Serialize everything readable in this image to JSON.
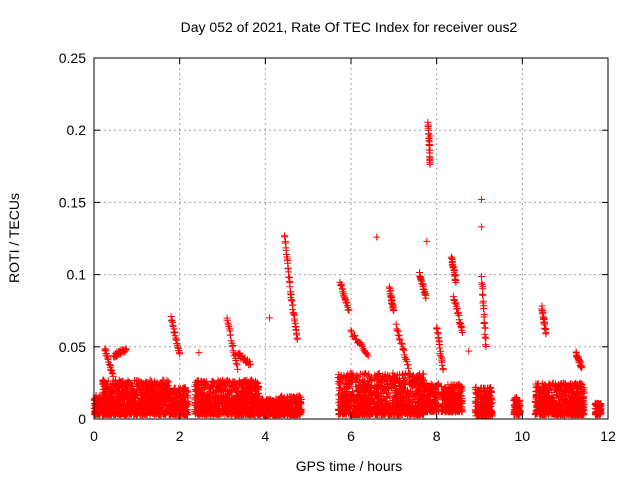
{
  "chart_data": {
    "type": "scatter",
    "title": "Day 052 of 2021, Rate Of TEC Index for receiver ous2",
    "xlabel": "GPS time / hours",
    "ylabel": "ROTI / TECUs",
    "xlim": [
      0,
      12
    ],
    "ylim": [
      0,
      0.25
    ],
    "xticks": [
      0,
      2,
      4,
      6,
      8,
      10,
      12
    ],
    "yticks": [
      0,
      0.05,
      0.1,
      0.15,
      0.2,
      0.25
    ],
    "xtick_labels": [
      "0",
      "2",
      "4",
      "6",
      "8",
      "10",
      "12"
    ],
    "ytick_labels": [
      "0",
      "0.05",
      "0.1",
      "0.15",
      "0.2",
      "0.25"
    ],
    "grid": true,
    "marker": "+",
    "color": "#ff0000",
    "dense_segments": [
      {
        "x": [
          0.0,
          0.15
        ],
        "y": [
          0.003,
          0.018
        ]
      },
      {
        "x": [
          0.2,
          1.75
        ],
        "y": [
          0.003,
          0.027
        ]
      },
      {
        "x": [
          1.75,
          2.2
        ],
        "y": [
          0.003,
          0.022
        ]
      },
      {
        "x": [
          2.35,
          3.85
        ],
        "y": [
          0.003,
          0.027
        ]
      },
      {
        "x": [
          3.85,
          4.35
        ],
        "y": [
          0.003,
          0.014
        ]
      },
      {
        "x": [
          4.35,
          4.85
        ],
        "y": [
          0.003,
          0.016
        ]
      },
      {
        "x": [
          5.7,
          7.7
        ],
        "y": [
          0.003,
          0.032
        ]
      },
      {
        "x": [
          7.7,
          8.05
        ],
        "y": [
          0.005,
          0.025
        ]
      },
      {
        "x": [
          8.1,
          8.6
        ],
        "y": [
          0.005,
          0.024
        ]
      },
      {
        "x": [
          8.9,
          9.3
        ],
        "y": [
          0.002,
          0.022
        ]
      },
      {
        "x": [
          9.8,
          9.95
        ],
        "y": [
          0.003,
          0.015
        ]
      },
      {
        "x": [
          10.3,
          11.45
        ],
        "y": [
          0.003,
          0.025
        ]
      },
      {
        "x": [
          11.7,
          11.85
        ],
        "y": [
          0.003,
          0.011
        ]
      }
    ],
    "arcs": [
      {
        "x": [
          0.25,
          0.45
        ],
        "y": [
          0.049,
          0.03
        ]
      },
      {
        "x": [
          0.45,
          0.75
        ],
        "y": [
          0.044,
          0.048
        ]
      },
      {
        "x": [
          1.8,
          2.0
        ],
        "y": [
          0.07,
          0.045
        ]
      },
      {
        "x": [
          3.1,
          3.35
        ],
        "y": [
          0.07,
          0.035
        ]
      },
      {
        "x": [
          3.35,
          3.65
        ],
        "y": [
          0.045,
          0.038
        ]
      },
      {
        "x": [
          4.45,
          4.6
        ],
        "y": [
          0.127,
          0.085
        ]
      },
      {
        "x": [
          4.6,
          4.75
        ],
        "y": [
          0.085,
          0.055
        ]
      },
      {
        "x": [
          5.75,
          5.95
        ],
        "y": [
          0.095,
          0.075
        ]
      },
      {
        "x": [
          6.0,
          6.4
        ],
        "y": [
          0.06,
          0.045
        ]
      },
      {
        "x": [
          6.9,
          7.0
        ],
        "y": [
          0.09,
          0.075
        ]
      },
      {
        "x": [
          7.05,
          7.35
        ],
        "y": [
          0.065,
          0.035
        ]
      },
      {
        "x": [
          7.6,
          7.75
        ],
        "y": [
          0.1,
          0.085
        ]
      },
      {
        "x": [
          7.8,
          7.85
        ],
        "y": [
          0.205,
          0.176
        ]
      },
      {
        "x": [
          8.0,
          8.15
        ],
        "y": [
          0.064,
          0.035
        ]
      },
      {
        "x": [
          8.35,
          8.45
        ],
        "y": [
          0.112,
          0.095
        ]
      },
      {
        "x": [
          8.4,
          8.6
        ],
        "y": [
          0.085,
          0.06
        ]
      },
      {
        "x": [
          9.05,
          9.15
        ],
        "y": [
          0.098,
          0.05
        ]
      },
      {
        "x": [
          10.45,
          10.55
        ],
        "y": [
          0.078,
          0.06
        ]
      },
      {
        "x": [
          11.25,
          11.4
        ],
        "y": [
          0.045,
          0.035
        ]
      }
    ],
    "points": [
      {
        "x": 7.77,
        "y": 0.123
      },
      {
        "x": 6.6,
        "y": 0.126
      },
      {
        "x": 9.05,
        "y": 0.152
      },
      {
        "x": 9.05,
        "y": 0.133
      },
      {
        "x": 7.85,
        "y": 0.196
      },
      {
        "x": 7.82,
        "y": 0.19
      },
      {
        "x": 4.1,
        "y": 0.07
      },
      {
        "x": 8.75,
        "y": 0.047
      },
      {
        "x": 2.45,
        "y": 0.046
      }
    ]
  }
}
